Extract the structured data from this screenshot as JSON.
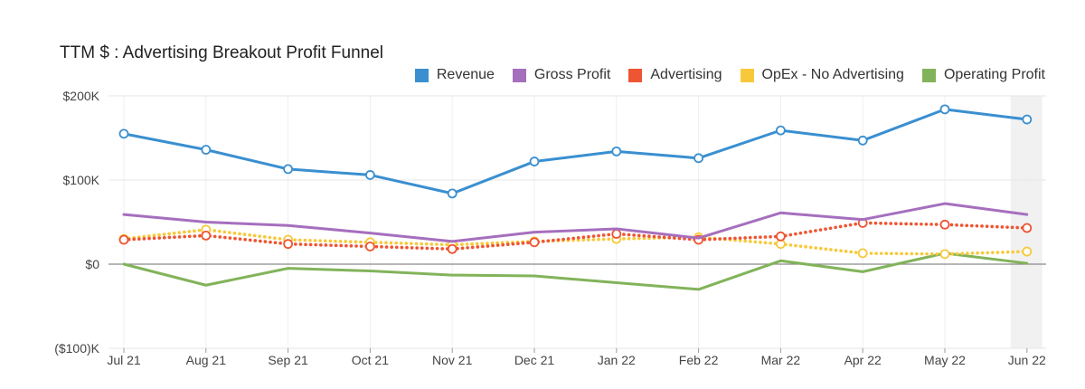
{
  "chart_data": {
    "type": "line",
    "title": "TTM $ : Advertising Breakout Profit Funnel",
    "xlabel": "",
    "ylabel": "",
    "categories": [
      "Jul 21",
      "Aug 21",
      "Sep 21",
      "Oct 21",
      "Nov 21",
      "Dec 21",
      "Jan 22",
      "Feb 22",
      "Mar 22",
      "Apr 22",
      "May 22",
      "Jun 22"
    ],
    "ylim": [
      -100000,
      200000
    ],
    "y_ticks": [
      {
        "value": 200000,
        "label": "$200K"
      },
      {
        "value": 100000,
        "label": "$100K"
      },
      {
        "value": 0,
        "label": "$0"
      },
      {
        "value": -100000,
        "label": "($100)K"
      }
    ],
    "legend_position": "top-right",
    "highlighted_category": "Jun 22",
    "series": [
      {
        "name": "Revenue",
        "color": "#3a8fd0",
        "style": "solid",
        "markers": true,
        "values": [
          155000,
          136000,
          113000,
          106000,
          84000,
          122000,
          134000,
          126000,
          159000,
          147000,
          184000,
          172000
        ]
      },
      {
        "name": "Gross Profit",
        "color": "#a66fbe",
        "style": "solid",
        "markers": false,
        "values": [
          59000,
          50000,
          46000,
          37000,
          27000,
          38000,
          42000,
          31000,
          61000,
          53000,
          72000,
          59000
        ]
      },
      {
        "name": "Advertising",
        "color": "#ee5533",
        "style": "dotted",
        "markers": true,
        "values": [
          29000,
          34000,
          24000,
          21000,
          18000,
          26000,
          36000,
          29000,
          33000,
          49000,
          47000,
          43000
        ]
      },
      {
        "name": "OpEx - No Advertising",
        "color": "#f7c93a",
        "style": "dotted",
        "markers": true,
        "values": [
          30000,
          41000,
          29000,
          26000,
          23000,
          27000,
          30000,
          32000,
          24000,
          13000,
          12000,
          15000
        ]
      },
      {
        "name": "Operating Profit",
        "color": "#82b35a",
        "style": "solid",
        "markers": false,
        "values": [
          0,
          -25000,
          -5000,
          -8000,
          -13000,
          -14000,
          -22000,
          -30000,
          4000,
          -9000,
          13000,
          1000
        ]
      }
    ]
  }
}
